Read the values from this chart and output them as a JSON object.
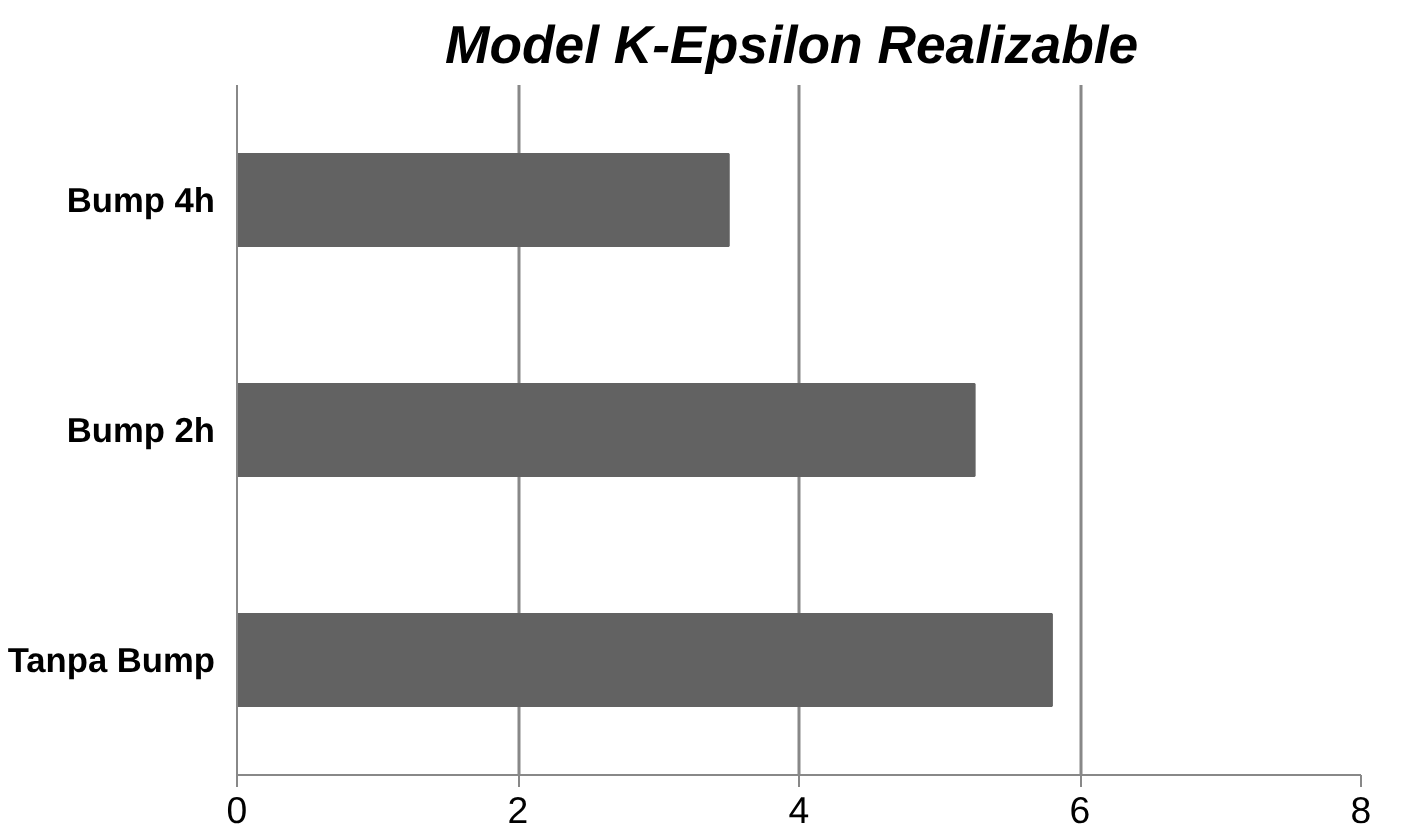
{
  "chart_data": {
    "type": "bar",
    "orientation": "horizontal",
    "title": "Model K-Epsilon  Realizable",
    "categories": [
      "Bump 4h",
      "Bump 2h",
      "Tanpa Bump"
    ],
    "values": [
      3.5,
      5.25,
      5.8
    ],
    "color": "#626262",
    "xlim": [
      0,
      8
    ],
    "xticks": [
      0,
      2,
      4,
      6,
      8
    ],
    "grid": "x"
  }
}
